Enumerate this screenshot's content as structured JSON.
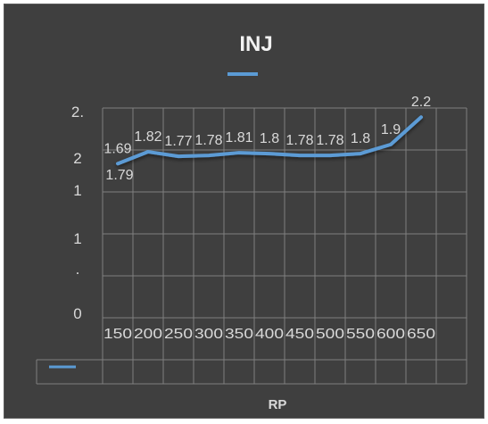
{
  "chart_data": {
    "type": "line",
    "title": "INJ",
    "xlabel": "RP",
    "ylabel": "",
    "categories": [
      "150",
      "200",
      "250",
      "300",
      "350",
      "400",
      "450",
      "500",
      "550",
      "600",
      "650"
    ],
    "series": [
      {
        "values": [
          1.69,
          1.82,
          1.77,
          1.78,
          1.81,
          1.8,
          1.78,
          1.78,
          1.8,
          1.9,
          2.2
        ],
        "labels": [
          "1.69",
          "1.82",
          "1.77",
          "1.78",
          "1.81",
          "1.8",
          "1.78",
          "1.78",
          "1.8",
          "1.9",
          "2.2"
        ],
        "color": "#5b9bd5"
      }
    ],
    "extra_labels": [
      {
        "text": "1.79",
        "value": 1.79
      }
    ],
    "y_tick_labels": [
      "0",
      ".",
      "1",
      "1",
      "2",
      "2."
    ],
    "ylim": [
      0,
      2.3
    ],
    "grid": true,
    "legend": "bottom",
    "colors": {
      "background": "#3f3f3f",
      "grid": "#7f7f7f",
      "text": "#d9d9d9",
      "title": "#f2f2f2",
      "line": "#5b9bd5"
    }
  }
}
